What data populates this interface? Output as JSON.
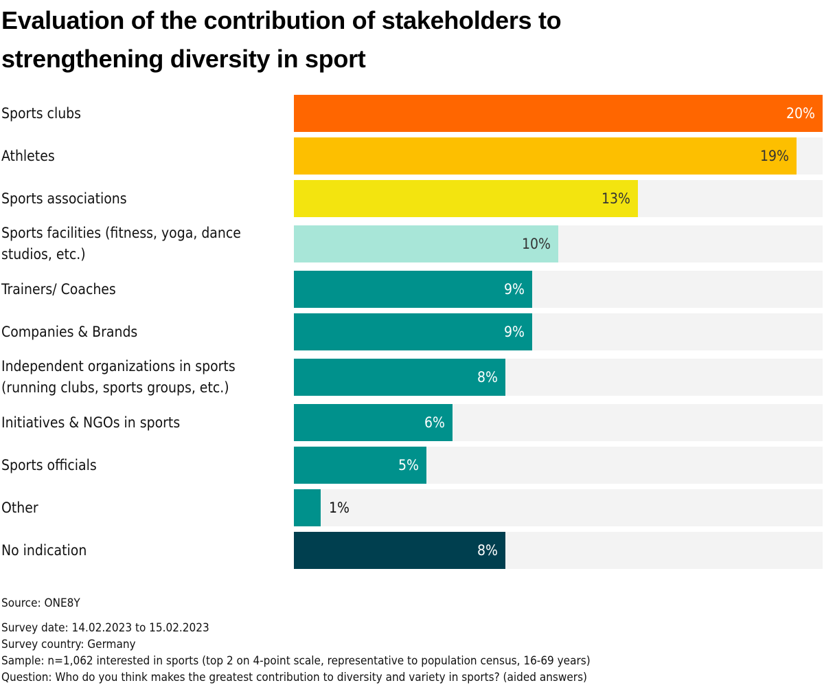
{
  "chart_data": {
    "type": "bar",
    "orientation": "horizontal",
    "title": "Evaluation of the contribution of stakeholders to strengthening diversity in sport",
    "xlabel": "",
    "ylabel": "",
    "unit": "%",
    "xlim": [
      0,
      20
    ],
    "grid": false,
    "legend": "none",
    "categories": [
      "Sports clubs",
      "Athletes",
      "Sports associations",
      "Sports facilities (fitness, yoga, dance studios, etc.)",
      "Trainers/ Coaches",
      "Companies & Brands",
      "Independent organizations in sports (running clubs, sports groups, etc.)",
      "Initiatives & NGOs in sports",
      "Sports officials",
      "Other",
      "No indication"
    ],
    "values": [
      20,
      19,
      13,
      10,
      9,
      9,
      8,
      6,
      5,
      1,
      8
    ],
    "value_labels": [
      "20%",
      "19%",
      "13%",
      "10%",
      "9%",
      "9%",
      "8%",
      "6%",
      "5%",
      "1%",
      "8%"
    ],
    "colors": [
      "#ff6600",
      "#fdbf00",
      "#f3e40f",
      "#a8e6d8",
      "#00918c",
      "#00918c",
      "#00918c",
      "#00918c",
      "#00918c",
      "#00918c",
      "#003f4f"
    ],
    "label_colors": [
      "#ffffff",
      "#333333",
      "#333333",
      "#333333",
      "#ffffff",
      "#ffffff",
      "#ffffff",
      "#ffffff",
      "#ffffff",
      "#111111",
      "#ffffff"
    ],
    "track_color": "#f3f3f3"
  },
  "footer": {
    "source": "Source: ONE8Y",
    "survey_date": "Survey date: 14.02.2023 to 15.02.2023",
    "survey_country": "Survey country: Germany",
    "sample": "Sample: n=1,062 interested in sports (top 2 on 4-point scale, representative to population census, 16-69 years)",
    "question": "Question: Who do you think makes the greatest contribution to diversity and variety in sports? (aided answers)"
  }
}
